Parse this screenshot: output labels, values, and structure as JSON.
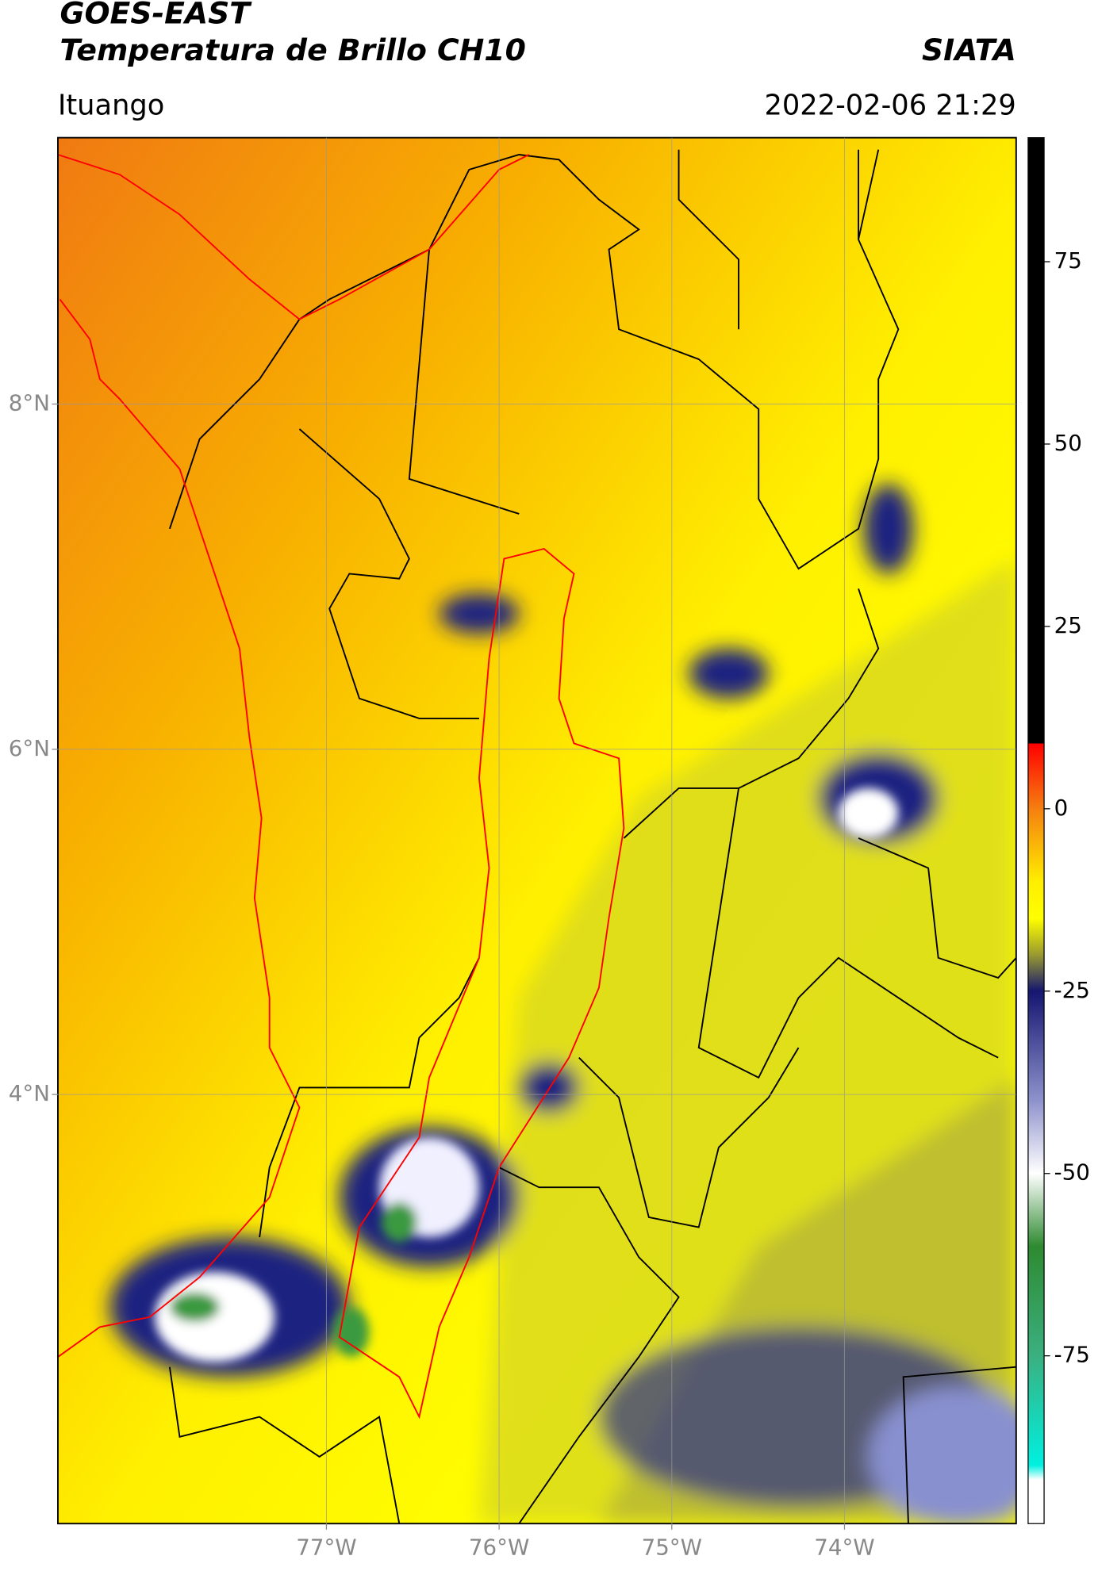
{
  "header": {
    "title": "GOES-EAST",
    "subtitle": "Temperatura de Brillo CH10",
    "source": "SIATA",
    "location": "Ituango",
    "datetime": "2022-02-06 21:29"
  },
  "map": {
    "xlim": [
      -78.555,
      -73.006
    ],
    "ylim": [
      1.514,
      9.543
    ],
    "xticks": [
      {
        "value": -77,
        "label": "77°W"
      },
      {
        "value": -76,
        "label": "76°W"
      },
      {
        "value": -75,
        "label": "75°W"
      },
      {
        "value": -74,
        "label": "74°W"
      }
    ],
    "yticks": [
      {
        "value": 8,
        "label": "8°N"
      },
      {
        "value": 6,
        "label": "6°N"
      },
      {
        "value": 4,
        "label": "4°N"
      }
    ],
    "grid": true
  },
  "colorbar": {
    "clim": [
      -98,
      92
    ],
    "ticks": [
      75,
      50,
      25,
      0,
      -25,
      -50,
      -75
    ],
    "stops": [
      {
        "value": 92,
        "color": "#000000"
      },
      {
        "value": 9,
        "color": "#000000"
      },
      {
        "value": 8.9,
        "color": "#ff0000"
      },
      {
        "value": 0,
        "color": "#f57f10"
      },
      {
        "value": -10,
        "color": "#ffee00"
      },
      {
        "value": -15,
        "color": "#ffff00"
      },
      {
        "value": -20,
        "color": "#9a9a30"
      },
      {
        "value": -25,
        "color": "#141670"
      },
      {
        "value": -40,
        "color": "#8e92cc"
      },
      {
        "value": -50,
        "color": "#ffffff"
      },
      {
        "value": -60,
        "color": "#2e8a30"
      },
      {
        "value": -75,
        "color": "#3ab080"
      },
      {
        "value": -90,
        "color": "#00f0e0"
      },
      {
        "value": -92,
        "color": "#ffffff"
      },
      {
        "value": -98,
        "color": "#ffffff"
      }
    ]
  }
}
